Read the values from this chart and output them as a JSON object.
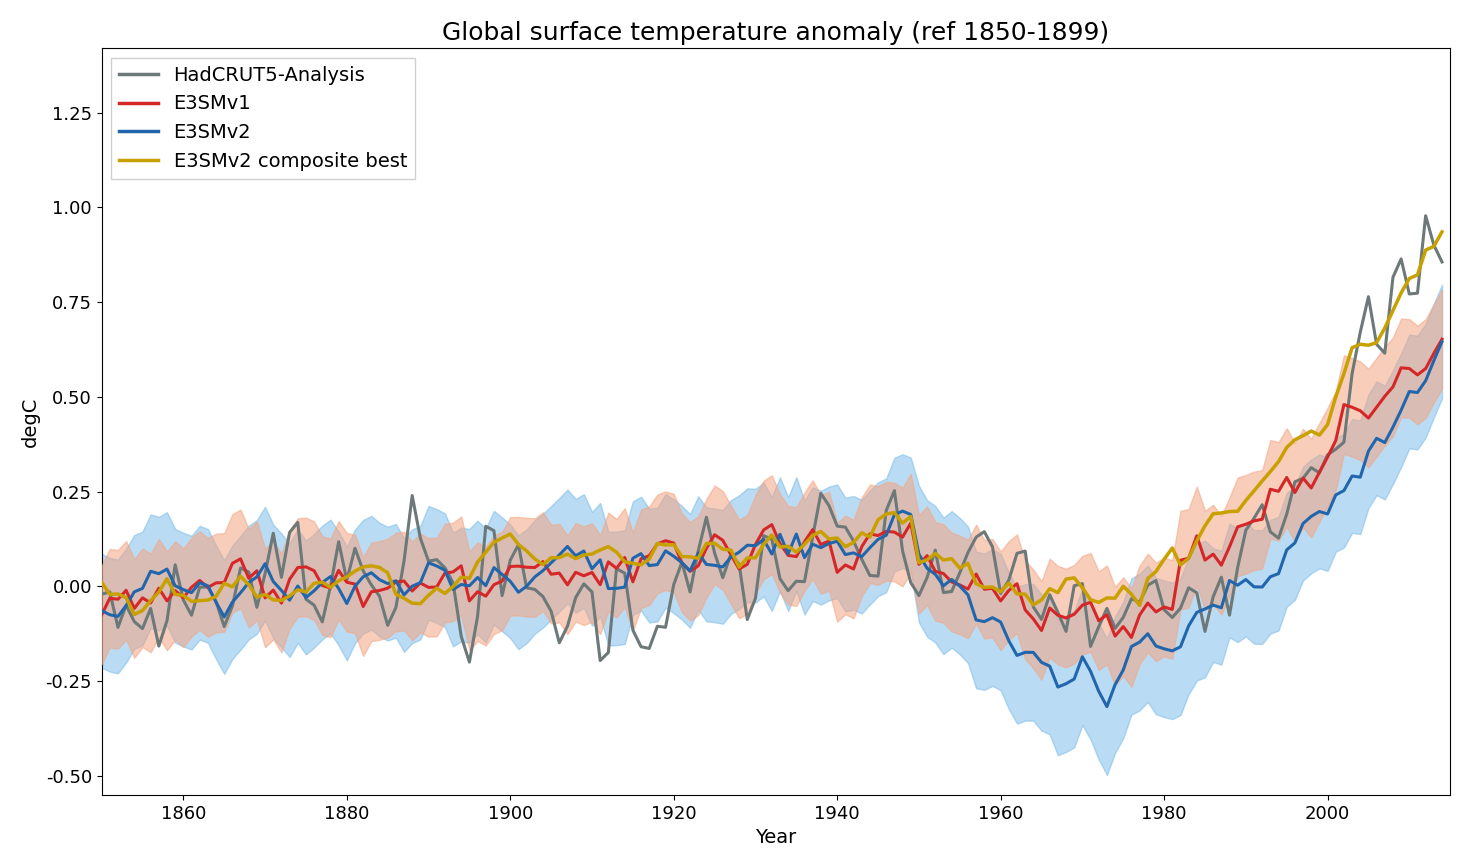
{
  "title": "Global surface temperature anomaly (ref 1850-1899)",
  "xlabel": "Year",
  "ylabel": "degC",
  "xlim": [
    1850,
    2015
  ],
  "ylim": [
    -0.55,
    1.42
  ],
  "yticks": [
    -0.5,
    -0.25,
    0.0,
    0.25,
    0.5,
    0.75,
    1.0,
    1.25
  ],
  "xticks": [
    1860,
    1880,
    1900,
    1920,
    1940,
    1960,
    1980,
    2000
  ],
  "hadcrut_color": "#6d7878",
  "e3smv1_mean_color": "#d62728",
  "e3smv1_range_color": "#f4a582",
  "e3smv2_mean_color": "#2166ac",
  "e3smv2_range_color": "#74b9e8",
  "composite_color": "#c8a000",
  "legend_labels": [
    "HadCRUT5-Analysis",
    "E3SMv1",
    "E3SMv2",
    "E3SMv2 composite best"
  ],
  "line_width": 2.2,
  "alpha_v1": 0.55,
  "alpha_v2": 0.5,
  "title_fontsize": 18,
  "axis_fontsize": 14,
  "tick_fontsize": 13
}
